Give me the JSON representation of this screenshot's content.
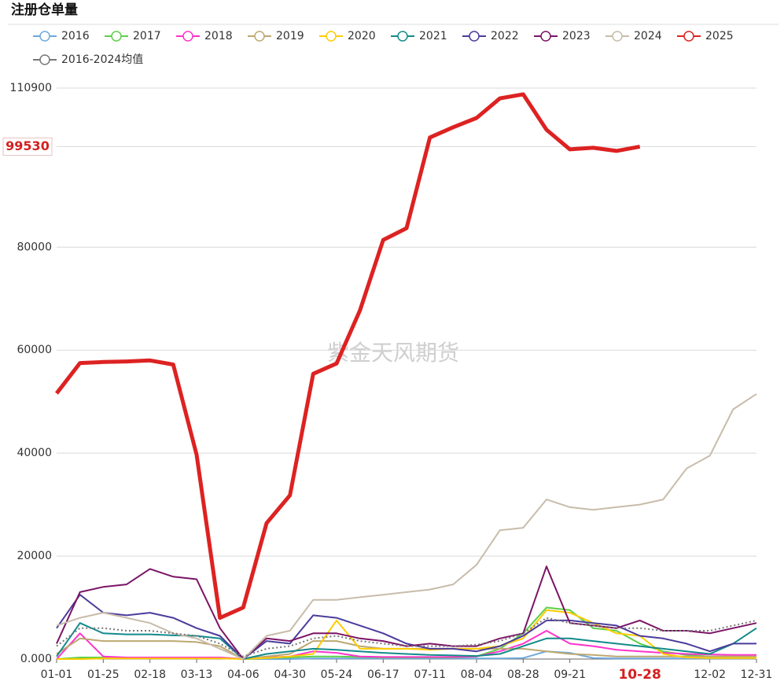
{
  "chart_data": {
    "type": "line",
    "title": "注册仓单量",
    "watermark": "紫金天风期货",
    "categories": [
      "01-01",
      null,
      "01-25",
      null,
      "02-18",
      null,
      "03-13",
      null,
      "04-06",
      null,
      "04-30",
      null,
      "05-24",
      null,
      "06-17",
      null,
      "07-11",
      null,
      "08-04",
      null,
      "08-28",
      null,
      "09-21",
      null,
      null,
      null,
      null,
      null,
      "12-02",
      null,
      "12-31"
    ],
    "x_highlight": "10-28",
    "y_highlight": 99530,
    "ylim": [
      0,
      110900
    ],
    "yticks": [
      {
        "value": 0,
        "label": "0.000"
      },
      20000,
      40000,
      60000,
      80000,
      110900
    ],
    "grid": true,
    "series": [
      {
        "name": "2016",
        "color": "#6fa8dc",
        "values": [
          0,
          0,
          200,
          200,
          200,
          200,
          200,
          200,
          0,
          0,
          0,
          100,
          100,
          100,
          100,
          100,
          100,
          100,
          100,
          100,
          200,
          1500,
          1200,
          200,
          100,
          100,
          100,
          100,
          100,
          100,
          100
        ]
      },
      {
        "name": "2017",
        "color": "#5ccf4a",
        "values": [
          0,
          300,
          300,
          300,
          300,
          300,
          300,
          300,
          0,
          200,
          300,
          500,
          500,
          400,
          300,
          300,
          300,
          300,
          500,
          2000,
          5000,
          10000,
          9500,
          6000,
          5500,
          3000,
          1500,
          800,
          500,
          500,
          500
        ]
      },
      {
        "name": "2018",
        "color": "#ff33cc",
        "values": [
          0,
          5000,
          500,
          300,
          300,
          300,
          300,
          300,
          0,
          300,
          500,
          1500,
          1200,
          500,
          400,
          400,
          400,
          400,
          500,
          1500,
          3000,
          5500,
          3000,
          2500,
          1800,
          1500,
          1200,
          1000,
          900,
          800,
          800
        ]
      },
      {
        "name": "2019",
        "color": "#bca870",
        "values": [
          1000,
          4000,
          3500,
          3500,
          3500,
          3500,
          3300,
          2500,
          0,
          500,
          1000,
          3500,
          3500,
          2500,
          2000,
          2000,
          2000,
          2000,
          2000,
          2000,
          2000,
          1500,
          1000,
          800,
          500,
          500,
          500,
          500,
          500,
          500,
          500
        ]
      },
      {
        "name": "2020",
        "color": "#ffcc00",
        "values": [
          0,
          0,
          100,
          100,
          100,
          100,
          100,
          100,
          0,
          200,
          500,
          1000,
          7500,
          2000,
          2000,
          2000,
          1800,
          2000,
          2000,
          2500,
          4000,
          9500,
          9000,
          7000,
          5000,
          4500,
          1000,
          300,
          200,
          200,
          200
        ]
      },
      {
        "name": "2021",
        "color": "#138a8a",
        "values": [
          500,
          7000,
          5000,
          4800,
          4800,
          4600,
          4500,
          4000,
          0,
          1000,
          1500,
          2000,
          1800,
          1500,
          1200,
          1000,
          800,
          700,
          600,
          1000,
          2500,
          4000,
          4000,
          3500,
          3000,
          2500,
          2000,
          1500,
          1000,
          3000,
          6000
        ]
      },
      {
        "name": "2022",
        "color": "#4b3c9c",
        "values": [
          6000,
          12500,
          9000,
          8500,
          9000,
          8000,
          6000,
          4500,
          0,
          3500,
          3000,
          8500,
          8000,
          6500,
          5000,
          3000,
          2000,
          2000,
          1500,
          2500,
          4500,
          7500,
          7500,
          7000,
          6500,
          4500,
          4000,
          3000,
          1500,
          3000,
          3000
        ]
      },
      {
        "name": "2023",
        "color": "#7b1466",
        "values": [
          3000,
          13000,
          14000,
          14500,
          17500,
          16000,
          15500,
          6000,
          0,
          4000,
          3500,
          5000,
          5000,
          4000,
          3500,
          2500,
          3000,
          2500,
          2500,
          4000,
          5000,
          18000,
          7000,
          6500,
          6000,
          7500,
          5500,
          5500,
          5000,
          6000,
          7000
        ]
      },
      {
        "name": "2024",
        "color": "#c8bcaa",
        "values": [
          6500,
          8000,
          9000,
          8000,
          7000,
          5000,
          4000,
          2000,
          0,
          4500,
          5500,
          11500,
          11500,
          12000,
          12500,
          13000,
          13500,
          14500,
          18300,
          25000,
          25500,
          31000,
          29500,
          29000,
          29500,
          30000,
          31000,
          37000,
          39500,
          48500,
          51500
        ]
      },
      {
        "name": "2025",
        "color": "#dd2222",
        "width": 5,
        "values": [
          51600,
          57500,
          57700,
          57800,
          58000,
          57200,
          39700,
          8000,
          10000,
          26400,
          31800,
          55400,
          57400,
          67700,
          81400,
          83700,
          101300,
          103300,
          105100,
          108900,
          109700,
          102800,
          99000,
          99300,
          98700,
          99530,
          null,
          null,
          null,
          null,
          null
        ]
      },
      {
        "name": "2016-2024均值",
        "color": "#777777",
        "dashed": true,
        "values": [
          2500,
          6000,
          6000,
          5500,
          5500,
          5000,
          4500,
          3000,
          500,
          2000,
          2500,
          4000,
          4500,
          3500,
          3000,
          2500,
          2500,
          2500,
          2800,
          3500,
          5000,
          8000,
          7000,
          6500,
          6000,
          6000,
          5500,
          5500,
          5500,
          6500,
          7500
        ]
      }
    ]
  }
}
